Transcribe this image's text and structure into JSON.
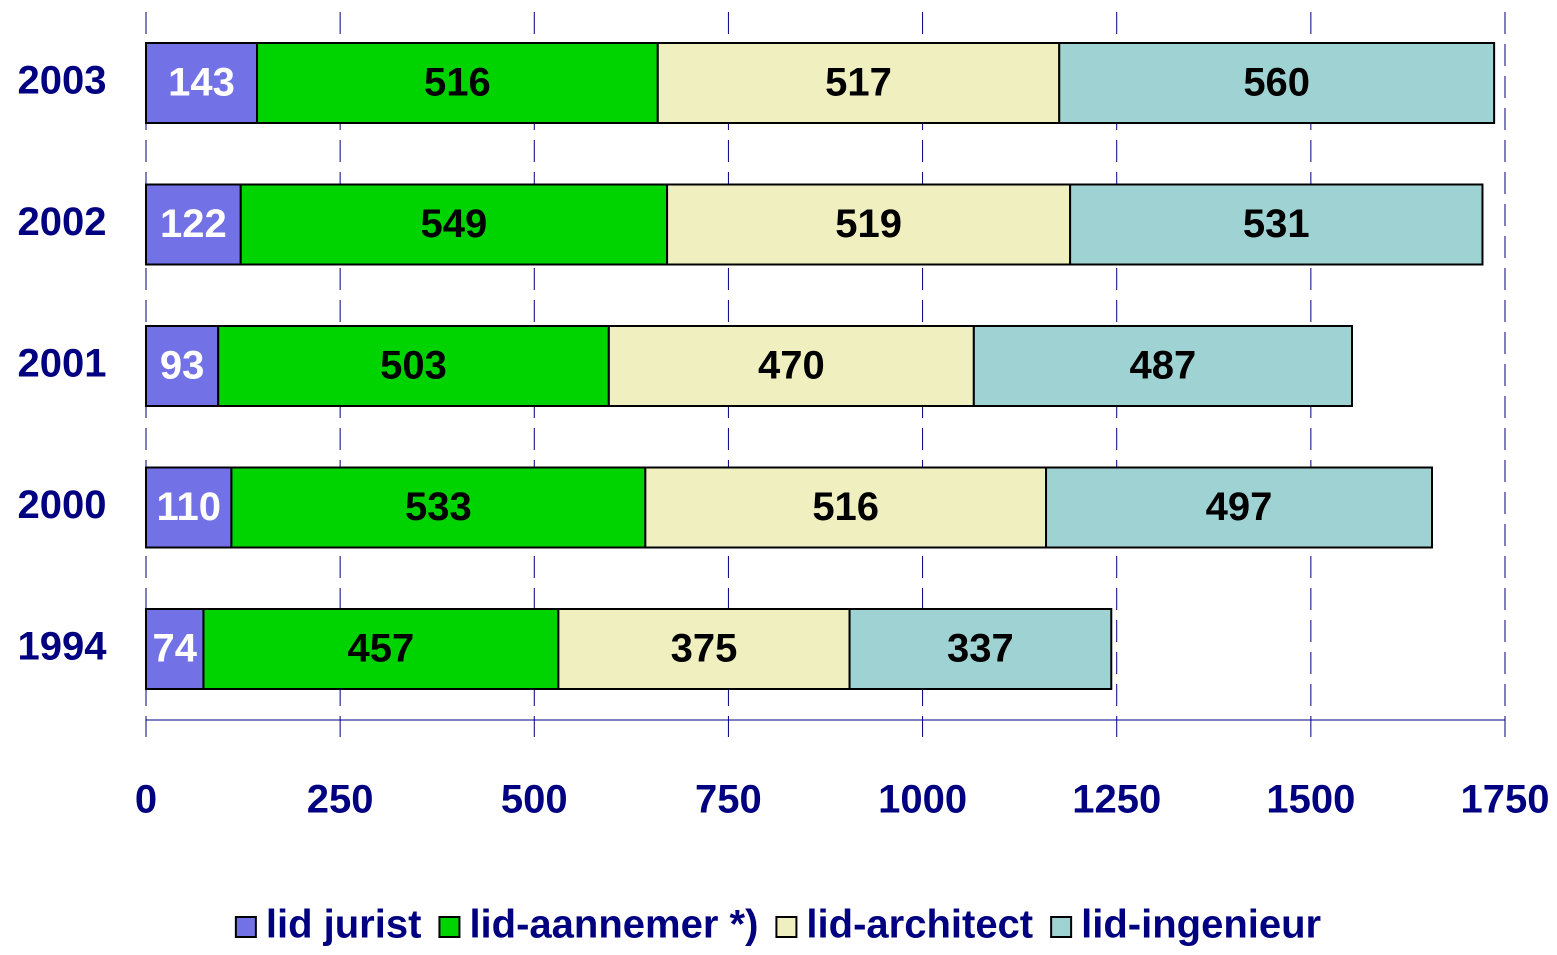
{
  "chart_data": {
    "type": "stacked-barh",
    "categories": [
      "2003",
      "2002",
      "2001",
      "2000",
      "1994"
    ],
    "series": [
      {
        "name": "lid jurist",
        "color": "#7272e6",
        "values": [
          143,
          122,
          93,
          110,
          74
        ]
      },
      {
        "name": "lid-aannemer *)",
        "color": "#00d400",
        "values": [
          516,
          549,
          503,
          533,
          457
        ]
      },
      {
        "name": "lid-architect",
        "color": "#efefbf",
        "values": [
          517,
          519,
          470,
          516,
          375
        ]
      },
      {
        "name": "lid-ingenieur",
        "color": "#9fd3d3",
        "values": [
          560,
          531,
          487,
          497,
          337
        ]
      }
    ],
    "xlim": [
      0,
      1750
    ],
    "xticks": [
      0,
      250,
      500,
      750,
      1000,
      1250,
      1500,
      1750
    ],
    "grid": true,
    "legend": "bottom"
  }
}
